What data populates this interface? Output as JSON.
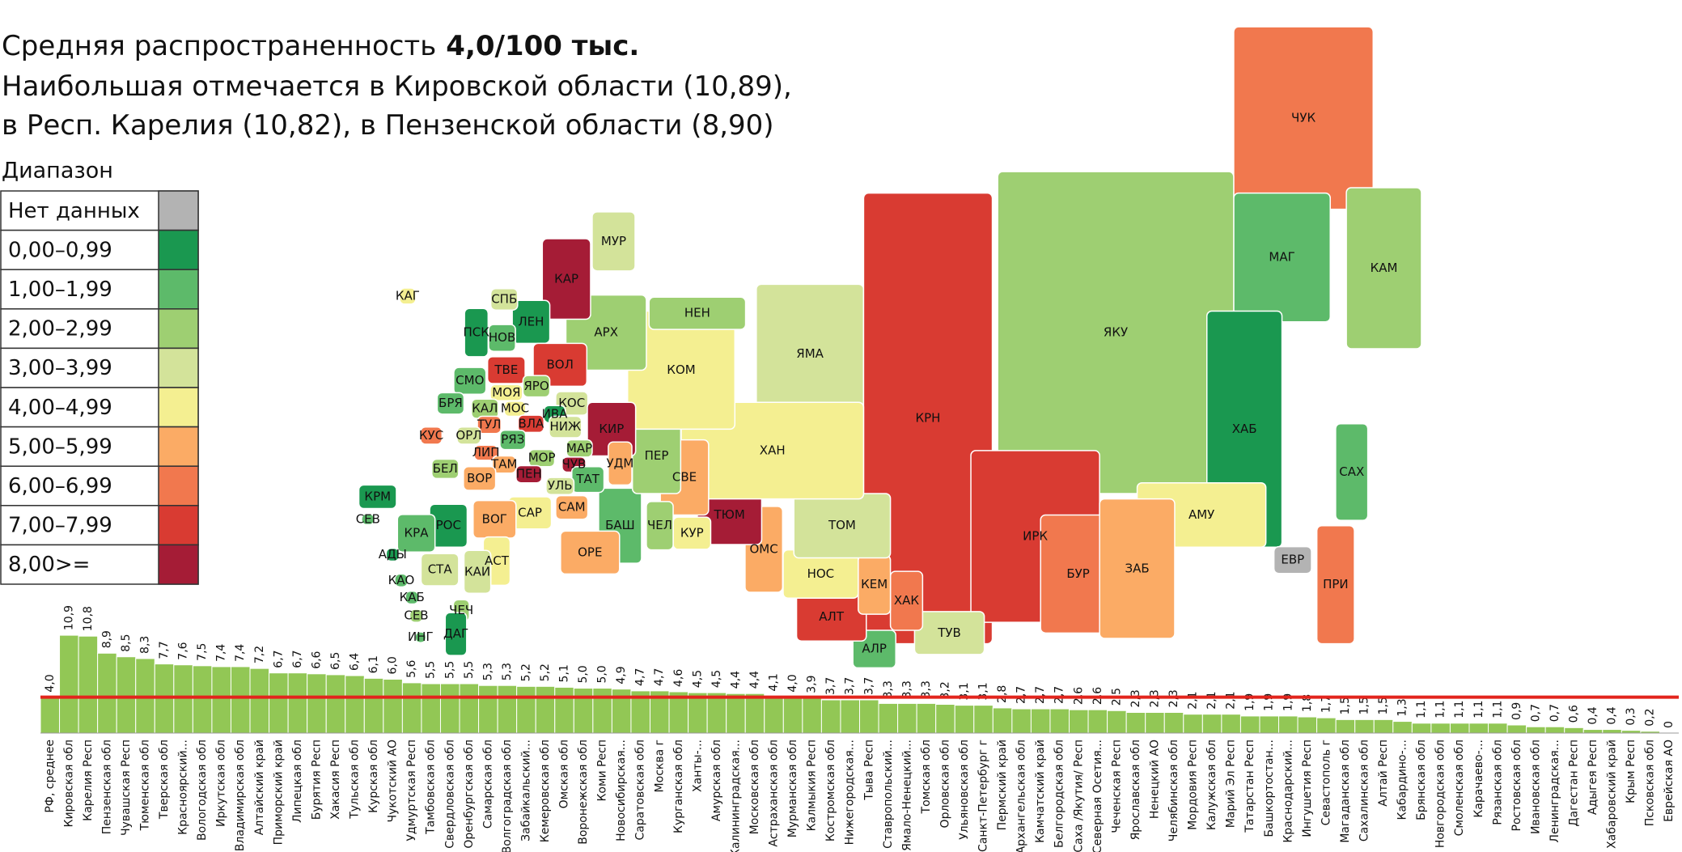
{
  "header": {
    "title": "Средняя распространенность",
    "title_highlight": "4,0/100 тыс.",
    "subtitle_lines": [
      "Наибольшая отмечается в Кировской области (10,89),",
      "в Респ. Карелия (10,82), в Пензенской области (8,90)"
    ]
  },
  "legend": {
    "title": "Диапазон",
    "items": [
      {
        "label": "Нет данных",
        "color": "#b3b3b3"
      },
      {
        "label": "0,00–0,99",
        "color": "#1a9850"
      },
      {
        "label": "1,00–1,99",
        "color": "#5dba6a"
      },
      {
        "label": "2,00–2,99",
        "color": "#9ecf72"
      },
      {
        "label": "3,00–3,99",
        "color": "#d3e39a"
      },
      {
        "label": "4,00–4,99",
        "color": "#f4ef91"
      },
      {
        "label": "5,00–5,99",
        "color": "#fbab65"
      },
      {
        "label": "6,00–6,99",
        "color": "#f1784e"
      },
      {
        "label": "7,00–7,99",
        "color": "#d93b32"
      },
      {
        "label": "8,00>=",
        "color": "#a51c36"
      }
    ]
  },
  "map": {
    "regions": [
      {
        "label": "ЯМА",
        "color": "#d3e39a"
      },
      {
        "label": "ЧУК",
        "color": "#f1784e"
      },
      {
        "label": "МАГ",
        "color": "#5dba6a"
      },
      {
        "label": "КАМ",
        "color": "#9ecf72"
      },
      {
        "label": "ЯКУ",
        "color": "#9ecf72"
      },
      {
        "label": "ХАБ",
        "color": "#1a9850"
      },
      {
        "label": "САХ",
        "color": "#5dba6a"
      },
      {
        "label": "АМУ",
        "color": "#f4ef91"
      },
      {
        "label": "ЕВР",
        "color": "#b3b3b3"
      },
      {
        "label": "ПРИ",
        "color": "#f1784e"
      },
      {
        "label": "КРН",
        "color": "#d93b32"
      },
      {
        "label": "ИРК",
        "color": "#d93b32"
      },
      {
        "label": "БУР",
        "color": "#f1784e"
      },
      {
        "label": "ЗАБ",
        "color": "#fbab65"
      },
      {
        "label": "ТУВ",
        "color": "#d3e39a"
      },
      {
        "label": "ХАК",
        "color": "#f1784e"
      },
      {
        "label": "АЛР",
        "color": "#5dba6a"
      },
      {
        "label": "АЛТ",
        "color": "#d93b32"
      },
      {
        "label": "КЕМ",
        "color": "#fbab65"
      },
      {
        "label": "НОС",
        "color": "#f4ef91"
      },
      {
        "label": "ТОМ",
        "color": "#d3e39a"
      },
      {
        "label": "ОМС",
        "color": "#fbab65"
      },
      {
        "label": "ТЮМ",
        "color": "#a51c36"
      },
      {
        "label": "ХАН",
        "color": "#f4ef91"
      },
      {
        "label": "КУР",
        "color": "#f4ef91"
      },
      {
        "label": "СВЕ",
        "color": "#fbab65"
      },
      {
        "label": "ЧЕЛ",
        "color": "#9ecf72"
      },
      {
        "label": "БАШ",
        "color": "#5dba6a"
      },
      {
        "label": "ОРЕ",
        "color": "#fbab65"
      },
      {
        "label": "ПЕР",
        "color": "#9ecf72"
      },
      {
        "label": "КОМ",
        "color": "#f4ef91"
      },
      {
        "label": "НЕН",
        "color": "#9ecf72"
      },
      {
        "label": "АРХ",
        "color": "#9ecf72"
      },
      {
        "label": "МУР",
        "color": "#d3e39a"
      },
      {
        "label": "КАР",
        "color": "#a51c36"
      },
      {
        "label": "ЛЕН",
        "color": "#1a9850"
      },
      {
        "label": "СПБ",
        "color": "#d3e39a"
      },
      {
        "label": "ПСК",
        "color": "#1a9850"
      },
      {
        "label": "НОВ",
        "color": "#5dba6a"
      },
      {
        "label": "ВОЛ",
        "color": "#d93b32"
      },
      {
        "label": "ТВЕ",
        "color": "#d93b32"
      },
      {
        "label": "ЯРО",
        "color": "#9ecf72"
      },
      {
        "label": "СМО",
        "color": "#5dba6a"
      },
      {
        "label": "МОЯ",
        "color": "#f4ef91"
      },
      {
        "label": "КОС",
        "color": "#d3e39a"
      },
      {
        "label": "МОС",
        "color": "#f4ef91"
      },
      {
        "label": "ИВА",
        "color": "#1a9850"
      },
      {
        "label": "КАЛ",
        "color": "#9ecf72"
      },
      {
        "label": "БРЯ",
        "color": "#5dba6a"
      },
      {
        "label": "ВЛА",
        "color": "#d93b32"
      },
      {
        "label": "НИЖ",
        "color": "#d3e39a"
      },
      {
        "label": "ТУЛ",
        "color": "#f1784e"
      },
      {
        "label": "КИР",
        "color": "#a51c36"
      },
      {
        "label": "УДМ",
        "color": "#fbab65"
      },
      {
        "label": "КУС",
        "color": "#f1784e"
      },
      {
        "label": "ОРЛ",
        "color": "#d3e39a"
      },
      {
        "label": "РЯЗ",
        "color": "#5dba6a"
      },
      {
        "label": "МАР",
        "color": "#9ecf72"
      },
      {
        "label": "ЛИП",
        "color": "#f1784e"
      },
      {
        "label": "МОР",
        "color": "#9ecf72"
      },
      {
        "label": "ЧУВ",
        "color": "#a51c36"
      },
      {
        "label": "БЕЛ",
        "color": "#9ecf72"
      },
      {
        "label": "ТАМ",
        "color": "#fbab65"
      },
      {
        "label": "ПЕН",
        "color": "#a51c36"
      },
      {
        "label": "ТАТ",
        "color": "#5dba6a"
      },
      {
        "label": "ВОР",
        "color": "#fbab65"
      },
      {
        "label": "УЛЬ",
        "color": "#d3e39a"
      },
      {
        "label": "САМ",
        "color": "#fbab65"
      },
      {
        "label": "САР",
        "color": "#f4ef91"
      },
      {
        "label": "ВОГ",
        "color": "#fbab65"
      },
      {
        "label": "КРМ",
        "color": "#1a9850"
      },
      {
        "label": "СЕВ",
        "color": "#5dba6a"
      },
      {
        "label": "РОС",
        "color": "#1a9850"
      },
      {
        "label": "КРА",
        "color": "#5dba6a"
      },
      {
        "label": "АДЫ",
        "color": "#1a9850"
      },
      {
        "label": "АСТ",
        "color": "#f4ef91"
      },
      {
        "label": "КАИ",
        "color": "#d3e39a"
      },
      {
        "label": "СТА",
        "color": "#d3e39a"
      },
      {
        "label": "КАО",
        "color": "#5dba6a"
      },
      {
        "label": "КАБ",
        "color": "#5dba6a"
      },
      {
        "label": "СЕВ",
        "color": "#9ecf72"
      },
      {
        "label": "ЧЕЧ",
        "color": "#9ecf72"
      },
      {
        "label": "ИНГ",
        "color": "#5dba6a"
      },
      {
        "label": "ДАГ",
        "color": "#1a9850"
      },
      {
        "label": "КАГ",
        "color": "#f4ef91"
      }
    ]
  },
  "chart_data": {
    "type": "bar",
    "color": "#92c755",
    "ylim": [
      0,
      11
    ],
    "reference_line": {
      "value": 4.0,
      "color": "#e3241c"
    },
    "categories": [
      "РФ, среднее",
      "Кировская обл",
      "Карелия Респ",
      "Пензенская обл",
      "Чувашская Респ",
      "Тюменская обл",
      "Тверская обл",
      "Красноярский...",
      "Вологодская обл",
      "Иркутская обл",
      "Владимирская обл",
      "Алтайский край",
      "Приморский край",
      "Липецкая обл",
      "Бурятия Респ",
      "Хакасия Респ",
      "Тульская обл",
      "Курская обл",
      "Чукотский АО",
      "Удмуртская Респ",
      "Тамбовская обл",
      "Свердловская обл",
      "Оренбургская обл",
      "Самарская обл",
      "Волгоградская обл",
      "Забайкальский...",
      "Кемеровская обл",
      "Омская обл",
      "Воронежская обл",
      "Коми Респ",
      "Новосибирская...",
      "Саратовская обл",
      "Москва г",
      "Курганская обл",
      "Ханты-...",
      "Амурская обл",
      "Калининградская...",
      "Московская обл",
      "Астраханская обл",
      "Мурманская обл",
      "Калмыкия Респ",
      "Костромская обл",
      "Нижегородская...",
      "Тыва Респ",
      "Ставропольский...",
      "Ямало-Ненецкий...",
      "Томская обл",
      "Орловская обл",
      "Ульяновская обл",
      "Санкт-Петербург г",
      "Пермский край",
      "Архангельская обл",
      "Камчатский край",
      "Белгородская обл",
      "Саха /Якутия/ Респ",
      "Северная Осетия...",
      "Чеченская Респ",
      "Ярославская обл",
      "Ненецкий АО",
      "Челябинская обл",
      "Мордовия Респ",
      "Калужская обл",
      "Марий Эл Респ",
      "Татарстан Респ",
      "Башкортостан...",
      "Краснодарский...",
      "Ингушетия Респ",
      "Севастополь г",
      "Магаданская обл",
      "Сахалинская обл",
      "Алтай Респ",
      "Кабардино-...",
      "Брянская обл",
      "Новгородская обл",
      "Смоленская обл",
      "Карачаево-...",
      "Рязанская обл",
      "Ростовская обл",
      "Ивановская обл",
      "Ленинградская...",
      "Дагестан Респ",
      "Адыгея Респ",
      "Хабаровский край",
      "Крым Респ",
      "Псковская обл",
      "Еврейская АО"
    ],
    "values": [
      4.0,
      10.9,
      10.8,
      8.9,
      8.5,
      8.3,
      7.7,
      7.6,
      7.5,
      7.4,
      7.4,
      7.2,
      6.7,
      6.7,
      6.6,
      6.5,
      6.4,
      6.1,
      6.0,
      5.6,
      5.5,
      5.5,
      5.5,
      5.3,
      5.3,
      5.2,
      5.2,
      5.1,
      5.0,
      5.0,
      4.9,
      4.7,
      4.7,
      4.6,
      4.5,
      4.5,
      4.4,
      4.4,
      4.1,
      4.0,
      3.9,
      3.7,
      3.7,
      3.7,
      3.3,
      3.3,
      3.3,
      3.2,
      3.1,
      3.1,
      2.8,
      2.7,
      2.7,
      2.7,
      2.6,
      2.6,
      2.5,
      2.3,
      2.3,
      2.3,
      2.1,
      2.1,
      2.1,
      1.9,
      1.9,
      1.9,
      1.8,
      1.7,
      1.5,
      1.5,
      1.5,
      1.3,
      1.1,
      1.1,
      1.1,
      1.1,
      1.1,
      0.9,
      0.7,
      0.7,
      0.6,
      0.4,
      0.4,
      0.3,
      0.2,
      0
    ],
    "value_labels": [
      "4,0",
      "10,9",
      "10,8",
      "8,9",
      "8,5",
      "8,3",
      "7,7",
      "7,6",
      "7,5",
      "7,4",
      "7,4",
      "7,2",
      "6,7",
      "6,7",
      "6,6",
      "6,5",
      "6,4",
      "6,1",
      "6,0",
      "5,6",
      "5,5",
      "5,5",
      "5,5",
      "5,3",
      "5,3",
      "5,2",
      "5,2",
      "5,1",
      "5,0",
      "5,0",
      "4,9",
      "4,7",
      "4,7",
      "4,6",
      "4,5",
      "4,5",
      "4,4",
      "4,4",
      "4,1",
      "4,0",
      "3,9",
      "3,7",
      "3,7",
      "3,7",
      "3,3",
      "3,3",
      "3,3",
      "3,2",
      "3,1",
      "3,1",
      "2,8",
      "2,7",
      "2,7",
      "2,7",
      "2,6",
      "2,6",
      "2,5",
      "2,3",
      "2,3",
      "2,3",
      "2,1",
      "2,1",
      "2,1",
      "1,9",
      "1,9",
      "1,9",
      "1,8",
      "1,7",
      "1,5",
      "1,5",
      "1,5",
      "1,3",
      "1,1",
      "1,1",
      "1,1",
      "1,1",
      "1,1",
      "0,9",
      "0,7",
      "0,7",
      "0,6",
      "0,4",
      "0,4",
      "0,3",
      "0,2",
      "0"
    ]
  }
}
